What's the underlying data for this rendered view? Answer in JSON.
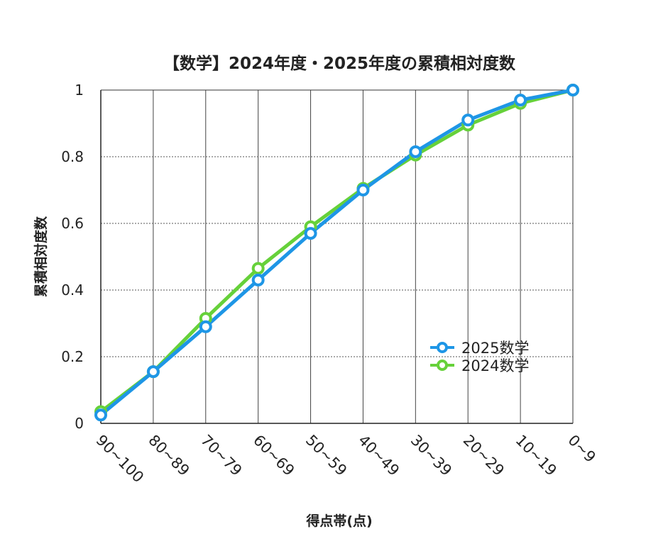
{
  "chart_data": {
    "type": "line",
    "title": "【数学】2024年度・2025年度の累積相対度数",
    "xlabel": "得点帯(点)",
    "ylabel": "累積相対度数",
    "categories": [
      "90~100",
      "80~89",
      "70~79",
      "60~69",
      "50~59",
      "40~49",
      "30~39",
      "20~29",
      "10~19",
      "0~9"
    ],
    "ylim": [
      0,
      1
    ],
    "yticks": [
      "0",
      "0.2",
      "0.4",
      "0.6",
      "0.8",
      "1"
    ],
    "legend_position": "right",
    "series": [
      {
        "name": "2025数学",
        "color": "#1e96e6",
        "values": [
          0.025,
          0.155,
          0.29,
          0.43,
          0.57,
          0.7,
          0.815,
          0.91,
          0.97,
          1.0
        ]
      },
      {
        "name": "2024数学",
        "color": "#66d13a",
        "values": [
          0.035,
          0.155,
          0.315,
          0.465,
          0.59,
          0.705,
          0.805,
          0.895,
          0.96,
          1.0
        ]
      }
    ]
  }
}
